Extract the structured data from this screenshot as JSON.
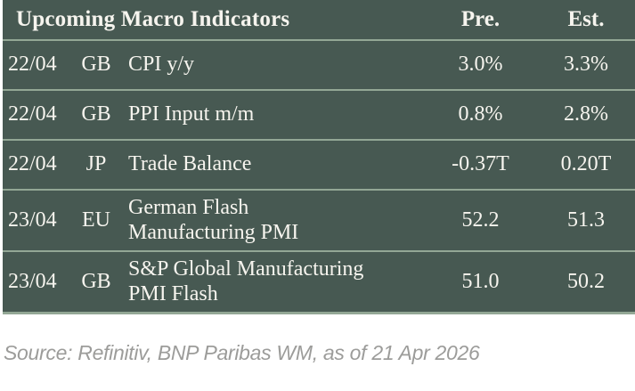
{
  "chart_data": {
    "type": "table",
    "title": "Upcoming Macro Indicators",
    "columns": [
      "Pre.",
      "Est."
    ],
    "rows": [
      {
        "date": "22/04",
        "country": "GB",
        "indicator": "CPI y/y",
        "pre": "3.0%",
        "est": "3.3%"
      },
      {
        "date": "22/04",
        "country": "GB",
        "indicator": "PPI Input m/m",
        "pre": "0.8%",
        "est": "2.8%"
      },
      {
        "date": "22/04",
        "country": "JP",
        "indicator": "Trade Balance",
        "pre": "-0.37T",
        "est": "0.20T"
      },
      {
        "date": "23/04",
        "country": "EU",
        "indicator": [
          "German Flash",
          "Manufacturing PMI"
        ],
        "pre": "52.2",
        "est": "51.3"
      },
      {
        "date": "23/04",
        "country": "GB",
        "indicator": [
          "S&P Global Manufacturing",
          "PMI Flash"
        ],
        "pre": "51.0",
        "est": "50.2"
      }
    ]
  },
  "footer": {
    "source": "Source: Refinitiv, BNP Paribas WM, as of 21 Apr 2026"
  },
  "colors": {
    "table_background": "#475952",
    "separator": "#93A795",
    "table_text": "#F6F4EE",
    "source_text": "#9C9C9A",
    "page_background": "#FFFFFF"
  }
}
